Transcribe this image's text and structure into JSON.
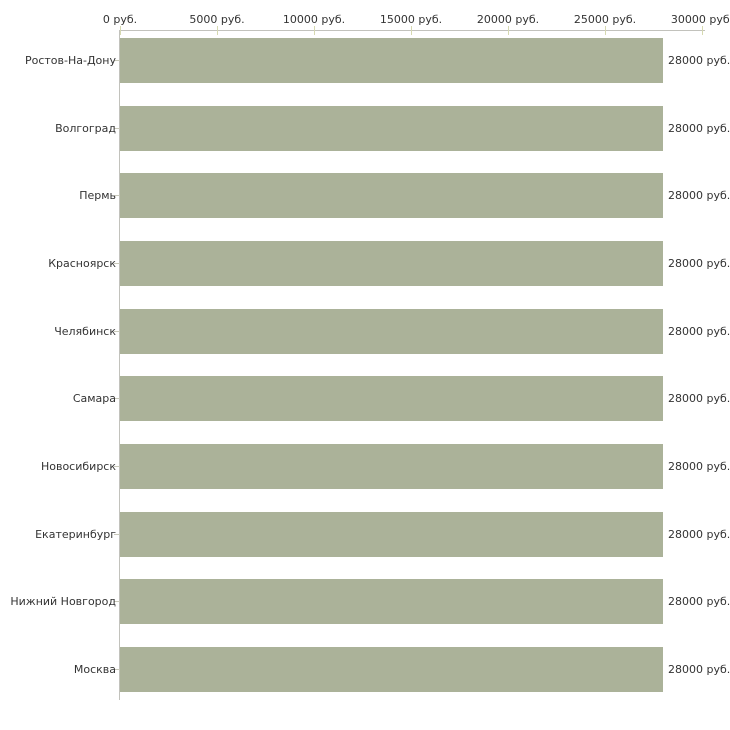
{
  "chart_data": {
    "type": "bar",
    "orientation": "horizontal",
    "title": "",
    "x_axis": {
      "position": "top",
      "tick_labels": [
        "0 руб.",
        "5000 руб.",
        "10000 руб.",
        "15000 руб.",
        "20000 руб.",
        "25000 руб.",
        "30000 руб."
      ],
      "min": 0,
      "max": 30000,
      "unit": "руб."
    },
    "categories": [
      "Ростов-На-Дону",
      "Волгоград",
      "Пермь",
      "Красноярск",
      "Челябинск",
      "Самара",
      "Новосибирск",
      "Екатеринбург",
      "Нижний Новгород",
      "Москва"
    ],
    "values": [
      28000,
      28000,
      28000,
      28000,
      28000,
      28000,
      28000,
      28000,
      28000,
      28000
    ],
    "value_labels": [
      "28000 руб.",
      "28000 руб.",
      "28000 руб.",
      "28000 руб.",
      "28000 руб.",
      "28000 руб.",
      "28000 руб.",
      "28000 руб.",
      "28000 руб.",
      "28000 руб."
    ],
    "legend": "none",
    "grid": "off",
    "colors": {
      "bar": "#abb299",
      "axis_line": "#c2c2bc",
      "tick": "#d6d9b0",
      "category_tick": "#c9c9bb",
      "text": "#333333",
      "background": "#ffffff"
    }
  }
}
